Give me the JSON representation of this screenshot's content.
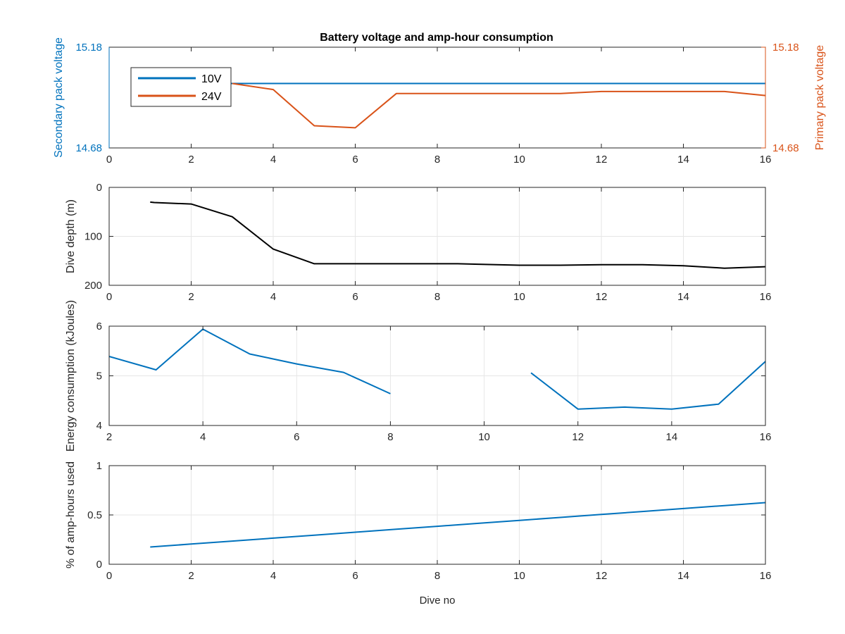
{
  "figure": {
    "title": "Battery voltage and amp-hour consumption"
  },
  "colors": {
    "blue": "#0072BD",
    "orange": "#D95319",
    "black": "#000000",
    "grid": "#e6e6e6",
    "axis": "#262626"
  },
  "chart_data": [
    {
      "type": "line",
      "title": "Battery voltage and amp-hour consumption",
      "xlabel": "",
      "ylabel": "Secondary pack voltage",
      "ylabel_right": "Primary pack voltage",
      "xlim": [
        0,
        16
      ],
      "ylim": [
        14.68,
        15.18
      ],
      "ylim_right": [
        14.68,
        15.18
      ],
      "xticks": [
        0,
        2,
        4,
        6,
        8,
        10,
        12,
        14,
        16
      ],
      "yticks": [
        14.68,
        15.18
      ],
      "yticks_right": [
        14.68,
        15.18
      ],
      "grid": false,
      "legend": "top-left",
      "series": [
        {
          "name": "10V",
          "color": "#0072BD",
          "axis": "left",
          "x": [
            1,
            2,
            3,
            4,
            5,
            6,
            7,
            8,
            9,
            10,
            11,
            12,
            13,
            14,
            15,
            16
          ],
          "y": [
            15.0,
            15.0,
            15.0,
            15.0,
            15.0,
            15.0,
            15.0,
            15.0,
            15.0,
            15.0,
            15.0,
            15.0,
            15.0,
            15.0,
            15.0,
            15.0
          ]
        },
        {
          "name": "24V",
          "color": "#D95319",
          "axis": "right",
          "x": [
            3,
            4,
            5,
            6,
            7,
            8,
            9,
            10,
            11,
            12,
            13,
            14,
            15,
            16
          ],
          "y": [
            15.0,
            14.97,
            14.79,
            14.78,
            14.95,
            14.95,
            14.95,
            14.95,
            14.95,
            14.96,
            14.96,
            14.96,
            14.96,
            14.94
          ]
        }
      ]
    },
    {
      "type": "line",
      "title": "",
      "xlabel": "",
      "ylabel": "Dive depth (m)",
      "xlim": [
        0,
        16
      ],
      "ylim": [
        0,
        200
      ],
      "y_reversed": true,
      "xticks": [
        0,
        2,
        4,
        6,
        8,
        10,
        12,
        14,
        16
      ],
      "yticks": [
        0,
        100,
        200
      ],
      "grid": true,
      "series": [
        {
          "color": "#000000",
          "x": [
            1,
            1.1,
            2,
            3,
            4,
            5,
            6,
            7,
            8,
            8.5,
            9,
            10,
            11,
            12,
            13,
            14,
            15,
            16
          ],
          "y": [
            30,
            31,
            34,
            60,
            126,
            156,
            156,
            156,
            156,
            156,
            157,
            159,
            159,
            158,
            158,
            160,
            165,
            162
          ]
        }
      ]
    },
    {
      "type": "line",
      "title": "",
      "xlabel": "",
      "ylabel": "Energy consumption (kJoules)",
      "xlim": [
        2,
        16
      ],
      "ylim": [
        4,
        6
      ],
      "xticks": [
        2,
        4,
        6,
        8,
        10,
        12,
        14,
        16
      ],
      "yticks": [
        4,
        5,
        6
      ],
      "grid": true,
      "series": [
        {
          "color": "#0072BD",
          "x": [
            2,
            3,
            4,
            5,
            6,
            7,
            8,
            9,
            10,
            11,
            12,
            13,
            14,
            15,
            16
          ],
          "y": [
            5.39,
            5.12,
            5.94,
            5.44,
            5.24,
            5.07,
            4.64,
            null,
            null,
            5.06,
            4.33,
            4.37,
            4.33,
            4.43,
            5.29
          ]
        }
      ]
    },
    {
      "type": "line",
      "title": "",
      "xlabel": "Dive no",
      "ylabel": "% of amp-hours used",
      "xlim": [
        0,
        16
      ],
      "ylim": [
        0,
        1
      ],
      "xticks": [
        0,
        2,
        4,
        6,
        8,
        10,
        12,
        14,
        16
      ],
      "yticks": [
        0,
        0.5,
        1
      ],
      "grid": true,
      "series": [
        {
          "color": "#0072BD",
          "x": [
            1,
            2,
            3,
            4,
            5,
            6,
            7,
            8,
            9,
            10,
            11,
            12,
            13,
            14,
            15,
            16
          ],
          "y": [
            0.175,
            0.205,
            0.235,
            0.265,
            0.295,
            0.325,
            0.355,
            0.385,
            0.415,
            0.445,
            0.475,
            0.505,
            0.535,
            0.565,
            0.595,
            0.625
          ]
        }
      ]
    }
  ]
}
